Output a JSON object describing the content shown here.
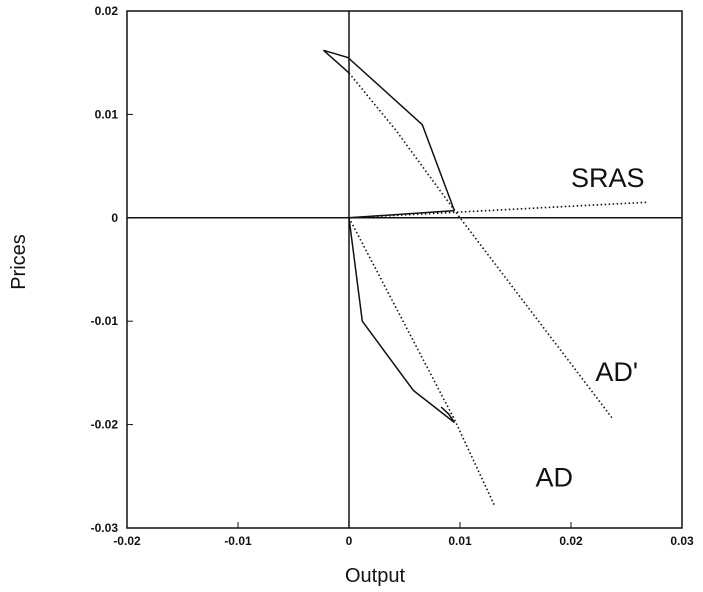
{
  "chart_data": {
    "type": "line",
    "xlabel": "Output",
    "ylabel": "Prices",
    "xlim": [
      -0.02,
      0.03
    ],
    "ylim": [
      -0.03,
      0.02
    ],
    "x_ticks": [
      {
        "value": -0.02,
        "label": "-0.02"
      },
      {
        "value": -0.01,
        "label": "-0.01"
      },
      {
        "value": 0,
        "label": "0"
      },
      {
        "value": 0.01,
        "label": "0.01"
      },
      {
        "value": 0.02,
        "label": "0.02"
      },
      {
        "value": 0.03,
        "label": "0.03"
      }
    ],
    "y_ticks": [
      {
        "value": 0.02,
        "label": "0.02"
      },
      {
        "value": 0.01,
        "label": "0.01"
      },
      {
        "value": 0,
        "label": "0"
      },
      {
        "value": -0.01,
        "label": "-0.01"
      },
      {
        "value": -0.02,
        "label": "-0.02"
      },
      {
        "value": -0.03,
        "label": "-0.03"
      }
    ],
    "grid": false,
    "reference_lines": {
      "x0": true,
      "y0": true
    },
    "series": [
      {
        "name": "SRAS",
        "style": "dotted",
        "points": [
          [
            0,
            0
          ],
          [
            0.0268,
            0.0015
          ]
        ]
      },
      {
        "name": "AD'",
        "style": "dotted",
        "points": [
          [
            0,
            0.014
          ],
          [
            0.0042,
            0.0085
          ],
          [
            0.01,
            0
          ],
          [
            0.0238,
            -0.0195
          ]
        ]
      },
      {
        "name": "AD",
        "style": "dotted",
        "points": [
          [
            0,
            0
          ],
          [
            0.0095,
            -0.0195
          ],
          [
            0.0131,
            -0.0278
          ]
        ]
      },
      {
        "name": "",
        "style": "solid",
        "points": [
          [
            0,
            0
          ],
          [
            0.0095,
            0.0007
          ]
        ]
      },
      {
        "name": "",
        "style": "solid",
        "points": [
          [
            0.0095,
            0.0007
          ],
          [
            0.0066,
            0.009
          ],
          [
            -0.0001,
            0.0155
          ],
          [
            -0.0023,
            0.0162
          ],
          [
            -0.0005,
            0.0145
          ],
          [
            0,
            0.014
          ]
        ]
      },
      {
        "name": "",
        "style": "solid",
        "points": [
          [
            0,
            0
          ],
          [
            0.0012,
            -0.01
          ],
          [
            0.0058,
            -0.0167
          ],
          [
            0.0095,
            -0.0198
          ],
          [
            0.009,
            -0.019
          ],
          [
            0.0083,
            -0.0183
          ]
        ]
      }
    ],
    "annotations": [
      {
        "text": "SRAS",
        "x": 0.02,
        "y": 0.003
      },
      {
        "text": "AD'",
        "x": 0.0222,
        "y": -0.0158
      },
      {
        "text": "AD",
        "x": 0.0168,
        "y": -0.026
      }
    ]
  }
}
